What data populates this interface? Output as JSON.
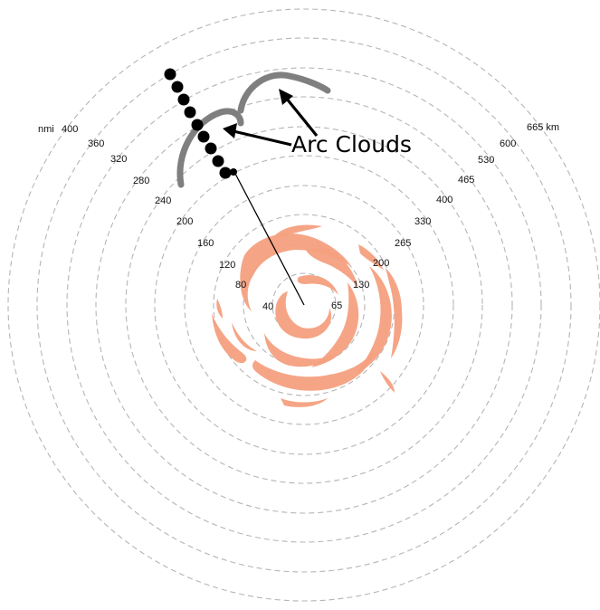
{
  "rings": {
    "nmi_unit": "nmi",
    "nmi_values": [
      "40",
      "80",
      "120",
      "160",
      "200",
      "240",
      "280",
      "320",
      "360",
      "400"
    ],
    "km_unit": "km",
    "km_values": [
      "65",
      "130",
      "200",
      "265",
      "330",
      "400",
      "465",
      "530",
      "600",
      "665"
    ]
  },
  "callout": {
    "text": "Arc Clouds"
  },
  "colors": {
    "rainbands": "#f4a07f",
    "arc_clouds": "#7f7f7f",
    "rings": "#b5b5b5",
    "dots": "#000000"
  }
}
